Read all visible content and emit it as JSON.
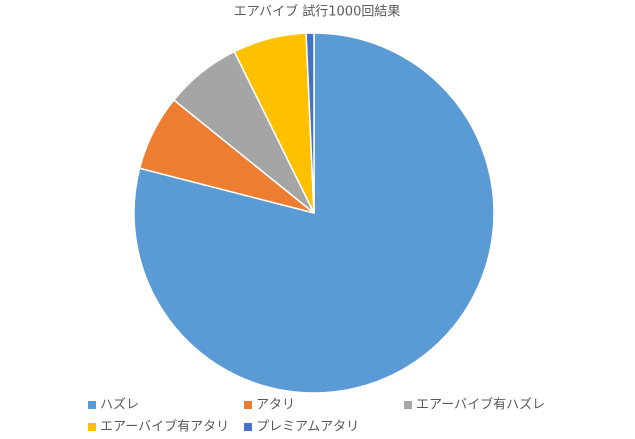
{
  "chart_data": {
    "type": "pie",
    "title": "エアバイブ 試行1000回結果",
    "categories": [
      "ハズレ",
      "アタリ",
      "エアーバイブ有ハズレ",
      "エアーバイブ有アタリ",
      "プレミアムアタリ"
    ],
    "values": [
      790,
      68,
      69,
      66,
      7
    ],
    "colors": [
      "#5b9bd5",
      "#ed7d31",
      "#a5a5a5",
      "#ffc000",
      "#4472c4"
    ],
    "legend": "bottom"
  }
}
